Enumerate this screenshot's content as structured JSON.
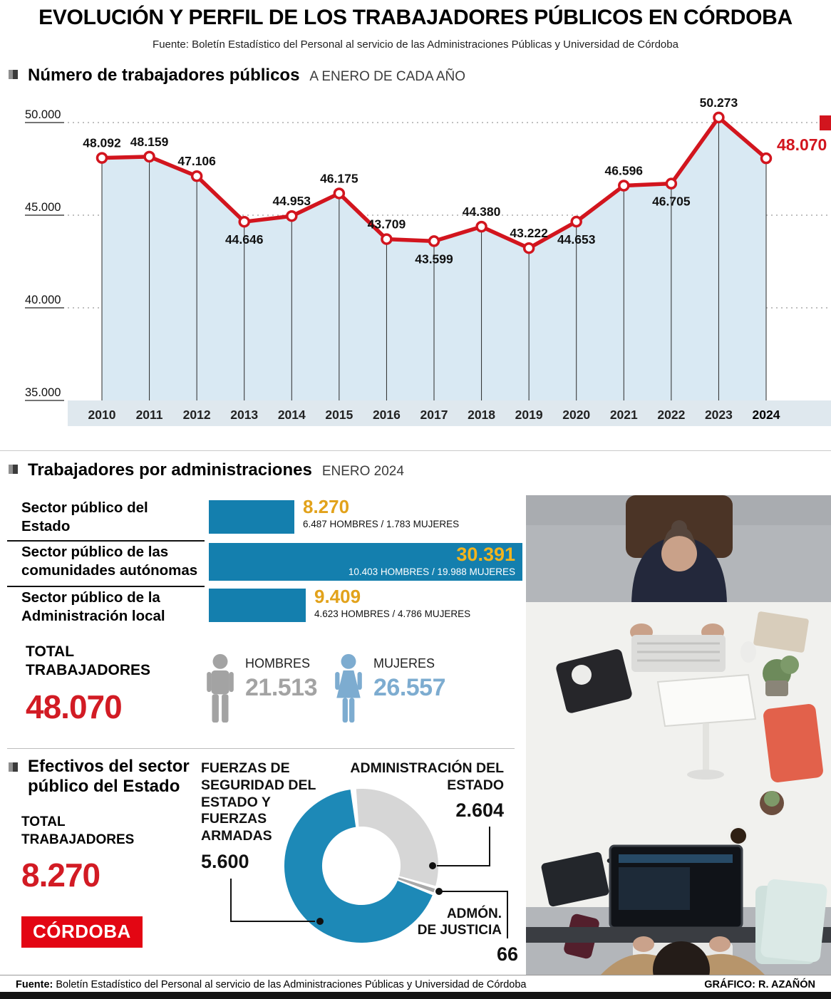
{
  "header": {
    "title": "EVOLUCIÓN Y PERFIL DE LOS TRABAJADORES PÚBLICOS EN CÓRDOBA",
    "source": "Fuente: Boletín Estadístico del Personal al servicio de las Administraciones Públicas y Universidad de Córdoba"
  },
  "colors": {
    "line_red": "#d2151e",
    "accent_red": "#d21b24",
    "bar_blue": "#147fae",
    "donut_blue": "#1d89b7",
    "value_orange": "#e2a21b",
    "value_yellow": "#f3b41d",
    "area_blue": "#d9e9f3",
    "axis_band": "#dfe8ee",
    "hombres_gray": "#a3a3a3",
    "mujeres_blue": "#7dacd0",
    "logo_red": "#e30613"
  },
  "chart_data": [
    {
      "id": "workers_per_year",
      "type": "line",
      "title": "Número de trabajadores públicos",
      "subtitle": "A ENERO DE CADA AÑO",
      "x": [
        "2010",
        "2011",
        "2012",
        "2013",
        "2014",
        "2015",
        "2016",
        "2017",
        "2018",
        "2019",
        "2020",
        "2021",
        "2022",
        "2023",
        "2024"
      ],
      "values": [
        48092,
        48159,
        47106,
        44646,
        44953,
        46175,
        43709,
        43599,
        44380,
        43222,
        44653,
        46596,
        46705,
        50273,
        48070
      ],
      "point_labels": [
        "48.092",
        "48.159",
        "47.106",
        "44.646",
        "44.953",
        "46.175",
        "43.709",
        "43.599",
        "44.380",
        "43.222",
        "44.653",
        "46.596",
        "46.705",
        "50.273",
        "48.070"
      ],
      "label_side": [
        "above",
        "above",
        "above",
        "below",
        "above",
        "above",
        "above",
        "below",
        "above",
        "above",
        "below",
        "above",
        "below",
        "above",
        "right"
      ],
      "ylim": [
        35000,
        50500
      ],
      "yticks": [
        {
          "label": "50.000",
          "value": 50000
        },
        {
          "label": "45.000",
          "value": 45000
        },
        {
          "label": "40.000",
          "value": 40000
        },
        {
          "label": "35.000",
          "value": 35000
        }
      ],
      "grid": "dashed-horizontal",
      "area_fill": true,
      "highlight_last_label": true
    },
    {
      "id": "workers_by_administration",
      "type": "bar",
      "title": "Trabajadores por administraciones",
      "subtitle": "ENERO 2024",
      "rows": [
        {
          "label": "Sector público del Estado",
          "value": 8270,
          "value_label": "8.270",
          "hombres": 6487,
          "mujeres": 1783,
          "sub": "6.487 HOMBRES / 1.783 MUJERES"
        },
        {
          "label": "Sector público de las comunidades autónomas",
          "value": 30391,
          "value_label": "30.391",
          "hombres": 10403,
          "mujeres": 19988,
          "sub": "10.403 HOMBRES / 19.988 MUJERES"
        },
        {
          "label": "Sector público de la Administración local",
          "value": 9409,
          "value_label": "9.409",
          "hombres": 4623,
          "mujeres": 4786,
          "sub": "4.623 HOMBRES / 4.786 MUJERES"
        }
      ],
      "totals": {
        "label": "TOTAL TRABAJADORES",
        "value": 48070,
        "value_label": "48.070",
        "hombres_label": "HOMBRES",
        "hombres_value": 21513,
        "hombres_value_label": "21.513",
        "mujeres_label": "MUJERES",
        "mujeres_value": 26557,
        "mujeres_value_label": "26.557"
      }
    },
    {
      "id": "state_sector_breakdown",
      "type": "pie",
      "title": "Efectivos del sector público del Estado",
      "total_label": "TOTAL TRABAJADORES",
      "total": 8270,
      "total_value_label": "8.270",
      "segments": [
        {
          "name": "ADMINISTRACIÓN DEL ESTADO",
          "value": 2604,
          "value_label": "2.604",
          "color": "#d6d6d6"
        },
        {
          "name": "ADMÓN. DE JUSTICIA",
          "name_lines": [
            "ADMÓN.",
            "DE JUSTICIA"
          ],
          "value": 66,
          "value_label": "66",
          "color": "#a8a8a8"
        },
        {
          "name": "FUERZAS DE SEGURIDAD DEL ESTADO Y FUERZAS ARMADAS",
          "value": 5600,
          "value_label": "5.600",
          "color": "#1d89b7"
        }
      ]
    }
  ],
  "logo": {
    "text": "CÓRDOBA"
  },
  "footer": {
    "source_label": "Fuente:",
    "source_text": "Boletín Estadístico del Personal al servicio de las Administraciones Públicas y Universidad de Córdoba",
    "credit": "GRÁFICO: R. AZAÑÓN"
  }
}
